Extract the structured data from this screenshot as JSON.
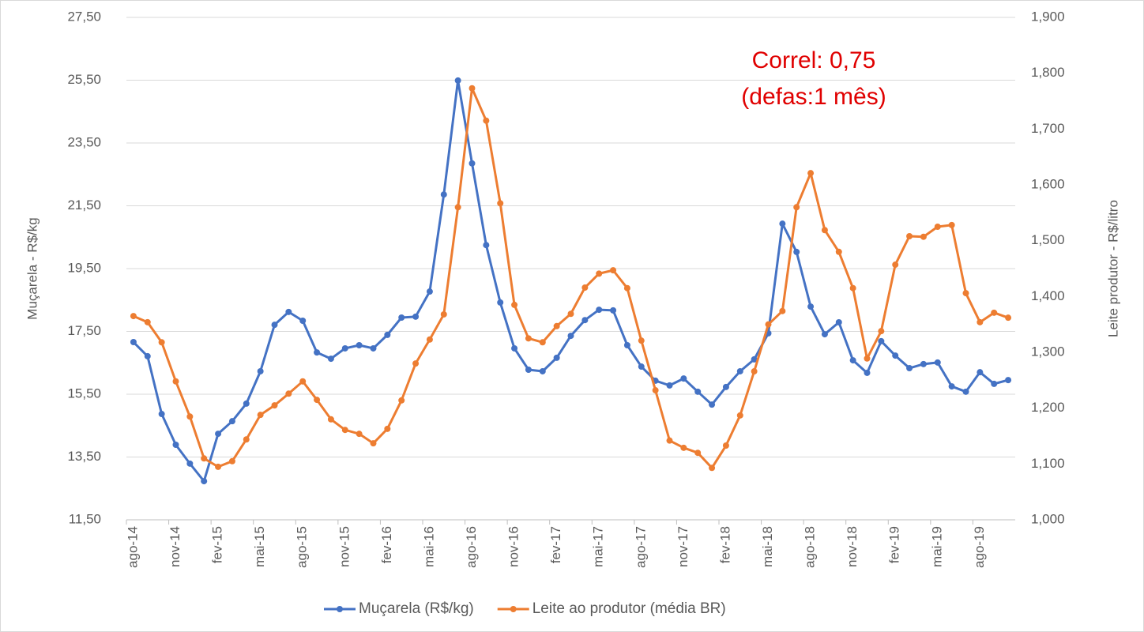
{
  "chart_data": {
    "type": "line",
    "categories": [
      "ago-14",
      null,
      null,
      "nov-14",
      null,
      null,
      "fev-15",
      null,
      null,
      "mai-15",
      null,
      null,
      "ago-15",
      null,
      null,
      "nov-15",
      null,
      null,
      "fev-16",
      null,
      null,
      "mai-16",
      null,
      null,
      "ago-16",
      null,
      null,
      "nov-16",
      null,
      null,
      "fev-17",
      null,
      null,
      "mai-17",
      null,
      null,
      "ago-17",
      null,
      null,
      "nov-17",
      null,
      null,
      "fev-18",
      null,
      null,
      "mai-18",
      null,
      null,
      "ago-18",
      null,
      null,
      "nov-18",
      null,
      null,
      "fev-19",
      null,
      null,
      "mai-19",
      null,
      null,
      "ago-19",
      null,
      null
    ],
    "series": [
      {
        "name": "Muçarela (R$/kg)",
        "color": "#4472c4",
        "axis": "y",
        "values": [
          17.16,
          16.71,
          14.87,
          13.89,
          13.29,
          12.73,
          14.24,
          14.64,
          15.2,
          16.23,
          17.71,
          18.12,
          17.84,
          16.83,
          16.63,
          16.96,
          17.06,
          16.96,
          17.39,
          17.94,
          17.97,
          18.77,
          21.86,
          25.49,
          22.85,
          20.25,
          18.42,
          16.96,
          16.28,
          16.23,
          16.66,
          17.36,
          17.86,
          18.19,
          18.17,
          17.06,
          16.38,
          15.93,
          15.78,
          16.0,
          15.58,
          15.17,
          15.73,
          16.23,
          16.61,
          17.44,
          20.93,
          20.03,
          18.29,
          17.41,
          17.79,
          16.58,
          16.18,
          17.19,
          16.73,
          16.33,
          16.46,
          16.51,
          15.75,
          15.58,
          16.2,
          15.83,
          15.95
        ]
      },
      {
        "name": "Leite ao produtor (média BR)",
        "color": "#ed7d31",
        "axis": "y2",
        "values": [
          1.365,
          1.354,
          1.318,
          1.248,
          1.185,
          1.11,
          1.095,
          1.105,
          1.144,
          1.188,
          1.205,
          1.226,
          1.248,
          1.215,
          1.18,
          1.161,
          1.154,
          1.137,
          1.163,
          1.214,
          1.28,
          1.323,
          1.368,
          1.56,
          1.773,
          1.715,
          1.567,
          1.385,
          1.325,
          1.318,
          1.347,
          1.369,
          1.416,
          1.441,
          1.447,
          1.415,
          1.321,
          1.232,
          1.142,
          1.129,
          1.12,
          1.093,
          1.133,
          1.187,
          1.266,
          1.35,
          1.374,
          1.56,
          1.621,
          1.519,
          1.48,
          1.415,
          1.289,
          1.338,
          1.457,
          1.508,
          1.507,
          1.525,
          1.528,
          1.406,
          1.354,
          1.371,
          1.362
        ]
      }
    ],
    "ylabel": "Muçarela - R$/kg",
    "y2label": "Leite produtor - R$/litro",
    "ylim": [
      11.5,
      27.5
    ],
    "yticks": [
      {
        "value": 11.5,
        "label": "11,50"
      },
      {
        "value": 13.5,
        "label": "13,50"
      },
      {
        "value": 15.5,
        "label": "15,50"
      },
      {
        "value": 17.5,
        "label": "17,50"
      },
      {
        "value": 19.5,
        "label": "19,50"
      },
      {
        "value": 21.5,
        "label": "21,50"
      },
      {
        "value": 23.5,
        "label": "23,50"
      },
      {
        "value": 25.5,
        "label": "25,50"
      },
      {
        "value": 27.5,
        "label": "27,50"
      }
    ],
    "y2lim": [
      1.0,
      1.9
    ],
    "y2ticks": [
      {
        "value": 1.0,
        "label": "1,000"
      },
      {
        "value": 1.1,
        "label": "1,100"
      },
      {
        "value": 1.2,
        "label": "1,200"
      },
      {
        "value": 1.3,
        "label": "1,300"
      },
      {
        "value": 1.4,
        "label": "1,400"
      },
      {
        "value": 1.5,
        "label": "1,500"
      },
      {
        "value": 1.6,
        "label": "1,600"
      },
      {
        "value": 1.7,
        "label": "1,700"
      },
      {
        "value": 1.8,
        "label": "1,800"
      },
      {
        "value": 1.9,
        "label": "1,900"
      }
    ],
    "annotations": [
      "Correl: 0,75",
      "(defas:1 mês)"
    ],
    "annotation_color": "#e00000",
    "grid": true,
    "legend": "bottom"
  }
}
